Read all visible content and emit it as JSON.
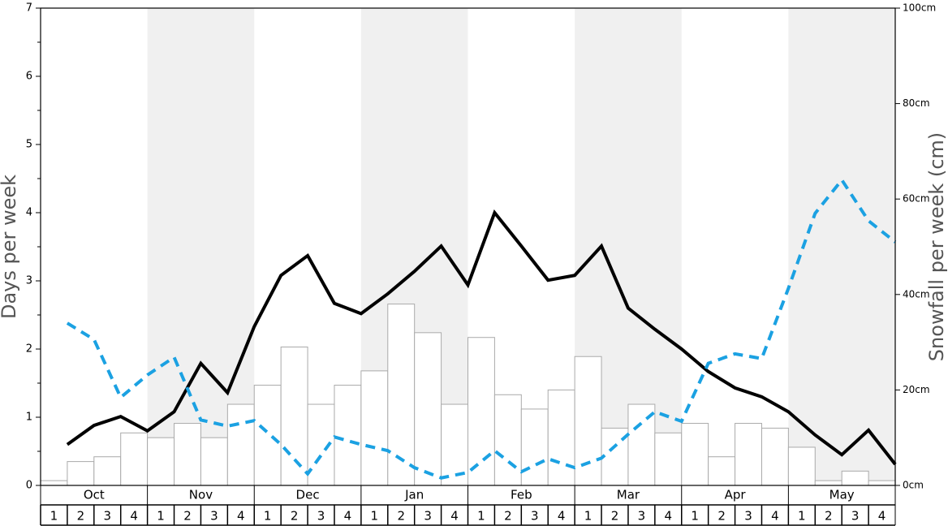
{
  "chart_data": {
    "type": "bar",
    "y_label": "Days per week",
    "y2_label": "Snowfall per week (cm)",
    "months": [
      "Oct",
      "Nov",
      "Dec",
      "Jan",
      "Feb",
      "Mar",
      "Apr",
      "May"
    ],
    "categories": [
      "1",
      "2",
      "3",
      "4",
      "1",
      "2",
      "3",
      "4",
      "1",
      "2",
      "3",
      "4",
      "1",
      "2",
      "3",
      "4",
      "1",
      "2",
      "3",
      "4",
      "1",
      "2",
      "3",
      "4",
      "1",
      "2",
      "3",
      "4",
      "1",
      "2",
      "3",
      "4"
    ],
    "bar_color": "#ffffff",
    "bar_edge": "#aaaaaa",
    "values": [
      1,
      5,
      6,
      11,
      10,
      13,
      10,
      17,
      21,
      29,
      17,
      21,
      24,
      38,
      32,
      17,
      31,
      19,
      16,
      20,
      27,
      12,
      17,
      11,
      13,
      6,
      13,
      12,
      8,
      1,
      3,
      1
    ],
    "series": [
      {
        "color": "#000000",
        "dashed": false,
        "values": [
          0.6,
          0.88,
          1.01,
          0.8,
          1.08,
          1.79,
          1.36,
          2.33,
          3.08,
          3.37,
          2.67,
          2.52,
          2.81,
          3.14,
          3.51,
          2.94,
          4.0,
          3.51,
          3.01,
          3.08,
          3.51,
          2.6,
          2.29,
          2.0,
          1.67,
          1.43,
          1.3,
          1.08,
          0.74,
          0.45,
          0.81,
          0.31
        ]
      },
      {
        "color": "#1ba1e2",
        "dashed": true,
        "values": [
          2.38,
          2.14,
          1.29,
          1.62,
          1.88,
          0.96,
          0.87,
          0.95,
          0.6,
          0.17,
          0.71,
          0.6,
          0.51,
          0.26,
          0.11,
          0.19,
          0.51,
          0.2,
          0.39,
          0.26,
          0.4,
          0.75,
          1.08,
          0.94,
          1.79,
          1.93,
          1.86,
          2.89,
          3.99,
          4.48,
          3.88,
          3.57
        ]
      }
    ],
    "ylim": [
      0,
      7
    ],
    "yticks": [
      0,
      1,
      2,
      3,
      4,
      5,
      6,
      7
    ],
    "y2lim": [
      0,
      100
    ],
    "y2ticks": [
      {
        "value": 0,
        "label": "0cm"
      },
      {
        "value": 20,
        "label": "20cm"
      },
      {
        "value": 40,
        "label": "40cm"
      },
      {
        "value": 60,
        "label": "60cm"
      },
      {
        "value": 80,
        "label": "80cm"
      },
      {
        "value": 100,
        "label": "100cm"
      }
    ]
  }
}
